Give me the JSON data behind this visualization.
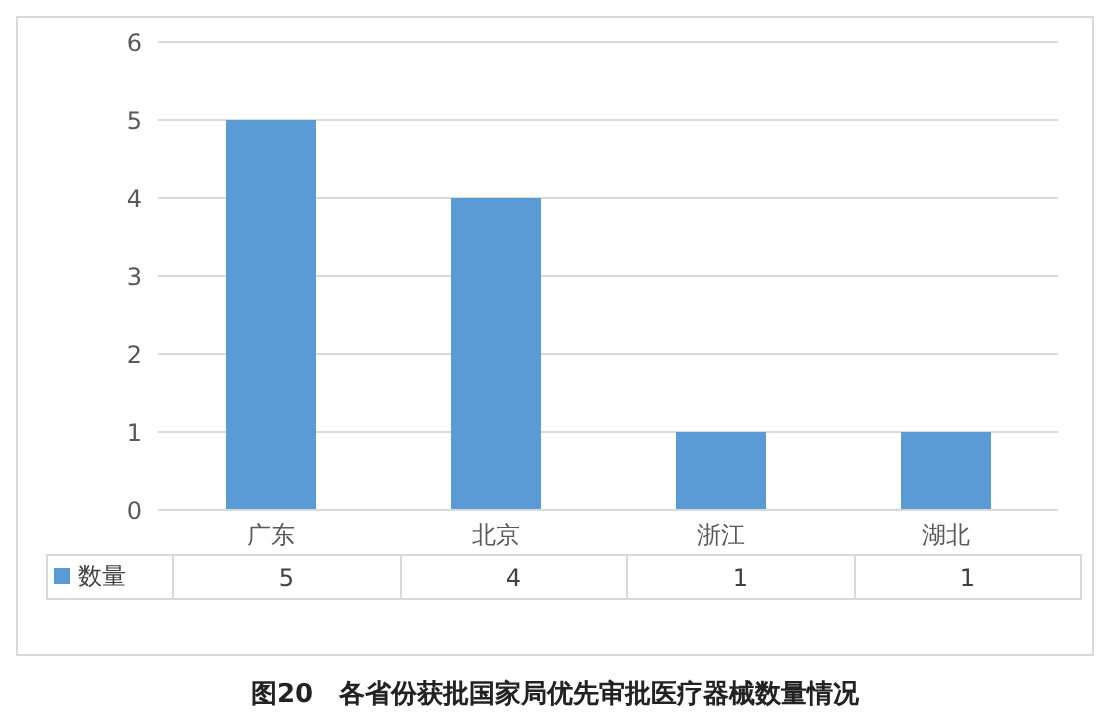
{
  "chart_data": {
    "type": "bar",
    "title": "图20　各省份获批国家局优先审批医疗器械数量情况",
    "categories": [
      "广东",
      "北京",
      "浙江",
      "湖北"
    ],
    "series": [
      {
        "name": "数量",
        "color": "#5b9bd5",
        "values": [
          5,
          4,
          1,
          1
        ]
      }
    ],
    "ylim": [
      0,
      6
    ],
    "yticks": [
      0,
      1,
      2,
      3,
      4,
      5,
      6
    ],
    "grid": "y",
    "legend": "bottom",
    "data_labels": true
  }
}
